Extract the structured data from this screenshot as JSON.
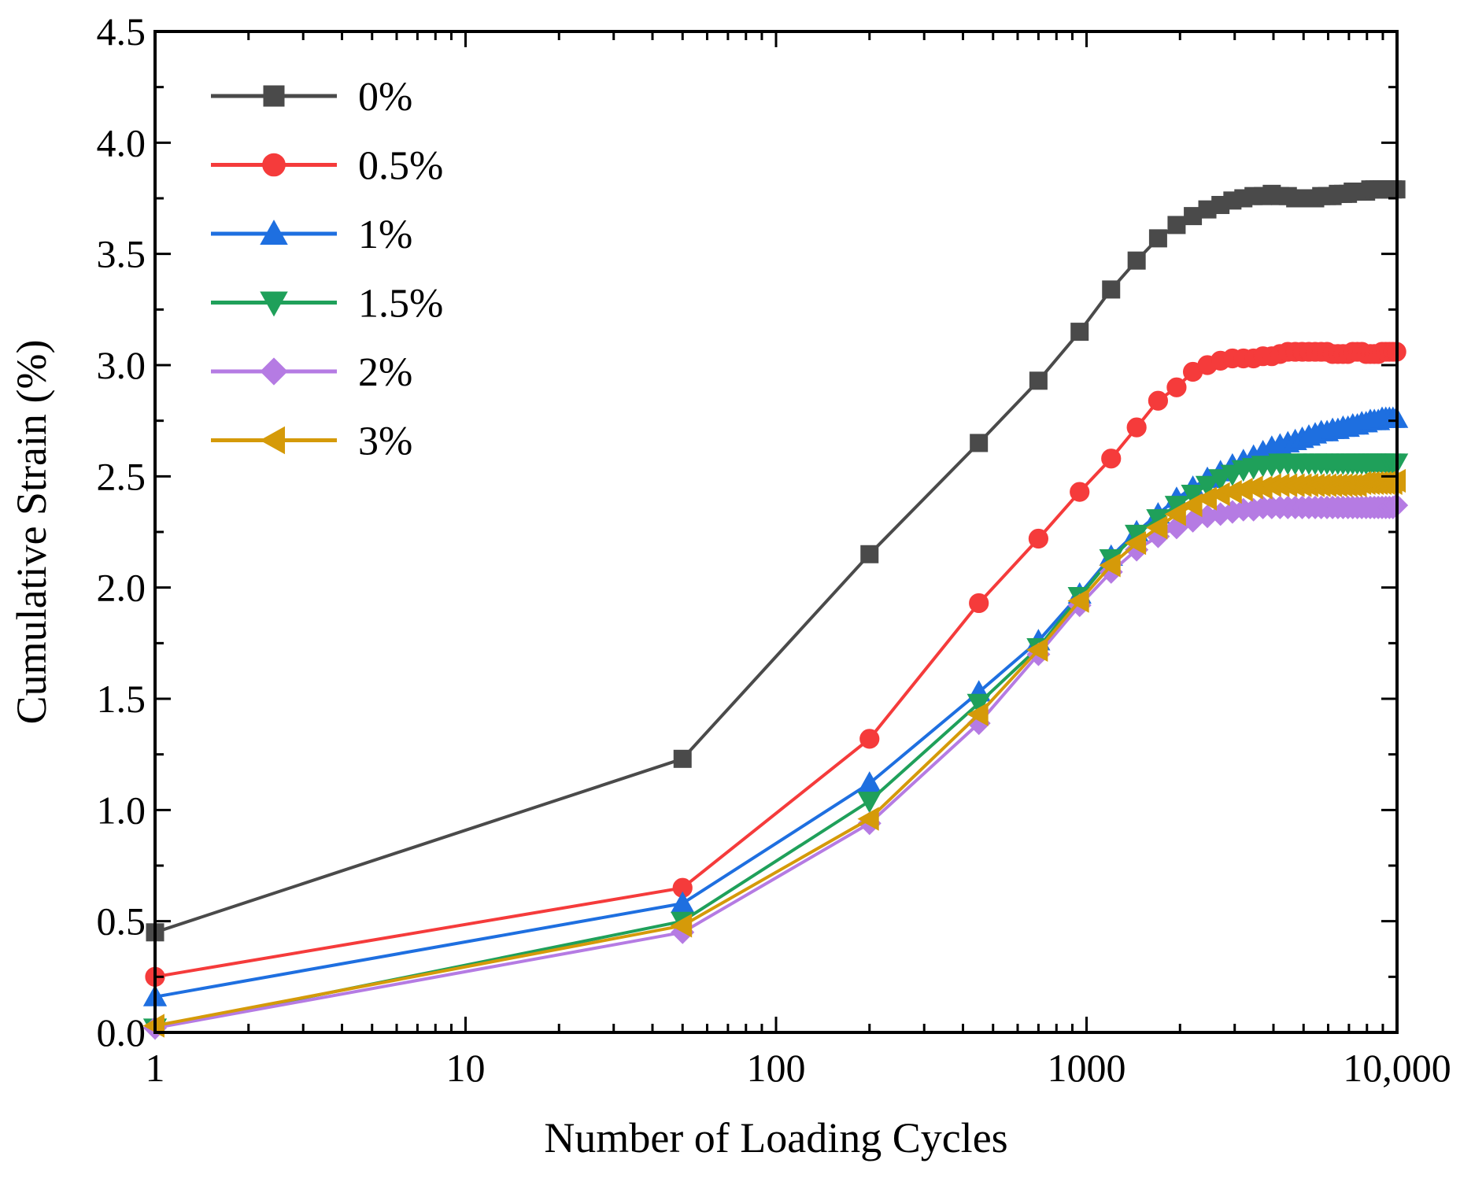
{
  "chart_data": {
    "type": "line",
    "title": "",
    "xlabel": "Number of Loading Cycles",
    "ylabel": "Cumulative Strain (%)",
    "xscale": "log",
    "xlim": [
      1,
      10000
    ],
    "ylim": [
      0,
      4.5
    ],
    "x_ticks": [
      {
        "value": 1,
        "label": "1"
      },
      {
        "value": 10,
        "label": "10"
      },
      {
        "value": 100,
        "label": "100"
      },
      {
        "value": 1000,
        "label": "1000"
      },
      {
        "value": 10000,
        "label": "10,000"
      }
    ],
    "y_ticks": [
      {
        "value": 0,
        "label": "0.0"
      },
      {
        "value": 0.5,
        "label": "0.5"
      },
      {
        "value": 1,
        "label": "1.0"
      },
      {
        "value": 1.5,
        "label": "1.5"
      },
      {
        "value": 2,
        "label": "2.0"
      },
      {
        "value": 2.5,
        "label": "2.5"
      },
      {
        "value": 3,
        "label": "3.0"
      },
      {
        "value": 3.5,
        "label": "3.5"
      },
      {
        "value": 4,
        "label": "4.0"
      },
      {
        "value": 4.5,
        "label": "4.5"
      }
    ],
    "legend_position": "top-left",
    "x": [
      1,
      50,
      200,
      450,
      700,
      950,
      1200,
      1450,
      1700,
      1950,
      2200,
      2450,
      2700,
      2950,
      3200,
      3450,
      3700,
      3950,
      4200,
      4450,
      4700,
      4950,
      5200,
      5450,
      5700,
      5950,
      6200,
      6450,
      6700,
      6950,
      7200,
      7450,
      7700,
      7950,
      8200,
      8450,
      8700,
      8950,
      9200,
      9450,
      9700,
      9950
    ],
    "series": [
      {
        "name": "0%",
        "color": "#4a4a4a",
        "marker": "square",
        "values": [
          0.45,
          1.23,
          2.15,
          2.65,
          2.93,
          3.15,
          3.34,
          3.47,
          3.57,
          3.63,
          3.67,
          3.7,
          3.72,
          3.74,
          3.75,
          3.76,
          3.76,
          3.77,
          3.76,
          3.76,
          3.75,
          3.75,
          3.75,
          3.75,
          3.76,
          3.76,
          3.76,
          3.77,
          3.77,
          3.77,
          3.78,
          3.78,
          3.78,
          3.78,
          3.79,
          3.79,
          3.79,
          3.79,
          3.79,
          3.79,
          3.79,
          3.79
        ]
      },
      {
        "name": "0.5%",
        "color": "#f53b3b",
        "marker": "circle",
        "values": [
          0.25,
          0.65,
          1.32,
          1.93,
          2.22,
          2.43,
          2.58,
          2.72,
          2.84,
          2.9,
          2.97,
          3.0,
          3.02,
          3.03,
          3.03,
          3.03,
          3.04,
          3.04,
          3.05,
          3.06,
          3.06,
          3.06,
          3.06,
          3.06,
          3.06,
          3.06,
          3.05,
          3.05,
          3.05,
          3.05,
          3.06,
          3.06,
          3.06,
          3.05,
          3.05,
          3.05,
          3.05,
          3.06,
          3.06,
          3.06,
          3.06,
          3.06
        ]
      },
      {
        "name": "1%",
        "color": "#1e6fe0",
        "marker": "triangle-up",
        "values": [
          0.16,
          0.58,
          1.12,
          1.53,
          1.76,
          1.97,
          2.14,
          2.25,
          2.33,
          2.4,
          2.45,
          2.49,
          2.52,
          2.55,
          2.57,
          2.59,
          2.61,
          2.63,
          2.64,
          2.65,
          2.66,
          2.67,
          2.68,
          2.69,
          2.7,
          2.7,
          2.71,
          2.71,
          2.72,
          2.72,
          2.73,
          2.73,
          2.74,
          2.74,
          2.75,
          2.75,
          2.75,
          2.76,
          2.76,
          2.76,
          2.76,
          2.76
        ]
      },
      {
        "name": "1.5%",
        "color": "#1fa05a",
        "marker": "triangle-down",
        "values": [
          0.02,
          0.5,
          1.04,
          1.48,
          1.73,
          1.96,
          2.13,
          2.24,
          2.31,
          2.37,
          2.42,
          2.46,
          2.49,
          2.51,
          2.53,
          2.54,
          2.55,
          2.55,
          2.56,
          2.56,
          2.56,
          2.56,
          2.56,
          2.56,
          2.56,
          2.56,
          2.56,
          2.56,
          2.56,
          2.56,
          2.56,
          2.56,
          2.56,
          2.56,
          2.56,
          2.56,
          2.56,
          2.56,
          2.56,
          2.56,
          2.56,
          2.56
        ]
      },
      {
        "name": "2%",
        "color": "#b57be3",
        "marker": "diamond",
        "values": [
          0.02,
          0.45,
          0.94,
          1.39,
          1.7,
          1.92,
          2.07,
          2.17,
          2.23,
          2.27,
          2.3,
          2.32,
          2.33,
          2.34,
          2.35,
          2.35,
          2.36,
          2.36,
          2.36,
          2.36,
          2.36,
          2.36,
          2.36,
          2.36,
          2.36,
          2.36,
          2.36,
          2.36,
          2.36,
          2.36,
          2.36,
          2.36,
          2.36,
          2.36,
          2.36,
          2.36,
          2.36,
          2.36,
          2.36,
          2.36,
          2.36,
          2.37
        ]
      },
      {
        "name": "3%",
        "color": "#d59a09",
        "marker": "triangle-left",
        "values": [
          0.03,
          0.48,
          0.96,
          1.43,
          1.72,
          1.94,
          2.1,
          2.2,
          2.27,
          2.33,
          2.37,
          2.4,
          2.42,
          2.43,
          2.44,
          2.45,
          2.45,
          2.46,
          2.46,
          2.46,
          2.46,
          2.46,
          2.46,
          2.46,
          2.46,
          2.46,
          2.46,
          2.46,
          2.46,
          2.46,
          2.46,
          2.46,
          2.47,
          2.47,
          2.47,
          2.47,
          2.47,
          2.47,
          2.47,
          2.47,
          2.47,
          2.48
        ]
      }
    ]
  }
}
